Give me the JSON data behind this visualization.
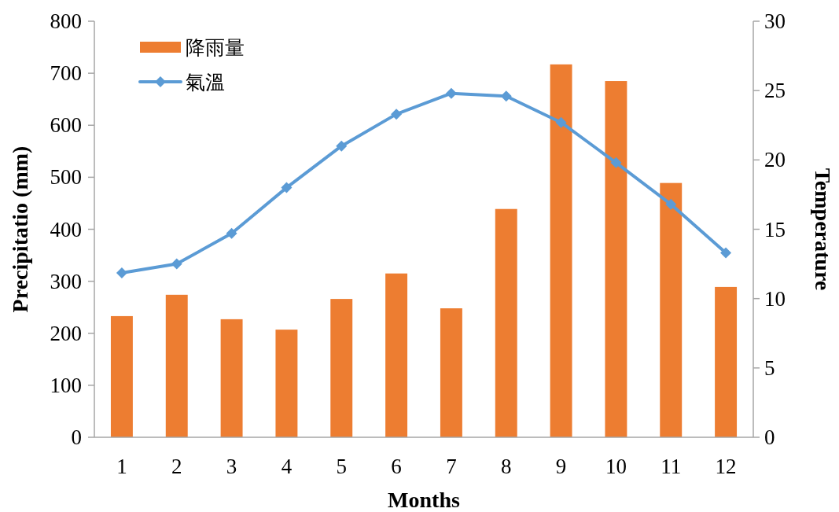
{
  "chart_data": {
    "type": "bar",
    "xlabel": "Months",
    "ylabel": "Precipitatio (mm)",
    "y2label": "Temperature",
    "categories": [
      "1",
      "2",
      "3",
      "4",
      "5",
      "6",
      "7",
      "8",
      "9",
      "10",
      "11",
      "12"
    ],
    "series": [
      {
        "name": "降雨量",
        "color": "#ed7d31",
        "values": [
          233,
          274,
          227,
          207,
          266,
          315,
          248,
          439,
          717,
          685,
          489,
          289
        ]
      },
      {
        "name": "氣溫",
        "type": "line",
        "axis": "y2",
        "color": "#5b9bd5",
        "values": [
          11.85,
          12.5,
          14.7,
          18.0,
          21.0,
          23.3,
          24.8,
          24.6,
          22.7,
          19.8,
          16.8,
          13.3
        ]
      }
    ],
    "ylim": [
      0,
      800
    ],
    "yticks": [
      0,
      100,
      200,
      300,
      400,
      500,
      600,
      700,
      800
    ],
    "y2lim": [
      0,
      30
    ],
    "y2ticks": [
      0,
      5,
      10,
      15,
      20,
      25,
      30
    ],
    "legend": "top left",
    "marker": "diamond"
  }
}
